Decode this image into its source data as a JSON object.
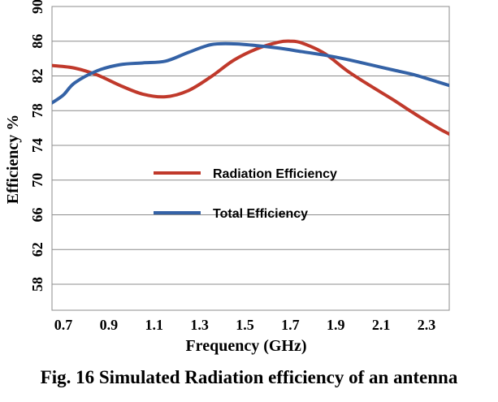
{
  "caption": "Fig. 16 Simulated Radiation efficiency of  an antenna",
  "chart_data": {
    "type": "line",
    "xlabel": "Frequency (GHz)",
    "ylabel": "Efficiency %",
    "xlim": [
      0.65,
      2.4
    ],
    "ylim": [
      55,
      90
    ],
    "x_ticks": [
      "0.7",
      "0.9",
      "1.1",
      "1.3",
      "1.5",
      "1.7",
      "1.9",
      "2.1",
      "2.3"
    ],
    "y_ticks": [
      "58",
      "62",
      "66",
      "70",
      "74",
      "78",
      "82",
      "86",
      "90"
    ],
    "grid": "horizontal",
    "legend_position": "center-left",
    "series": [
      {
        "name": "Radiation Efficiency",
        "color": "#c0392b",
        "x": [
          0.65,
          0.75,
          0.85,
          0.95,
          1.05,
          1.15,
          1.25,
          1.35,
          1.45,
          1.55,
          1.65,
          1.7,
          1.75,
          1.85,
          1.95,
          2.05,
          2.15,
          2.25,
          2.35,
          2.4
        ],
        "y": [
          83.2,
          82.9,
          82.1,
          80.9,
          79.9,
          79.6,
          80.3,
          81.9,
          83.8,
          85.1,
          85.9,
          86.0,
          85.8,
          84.6,
          82.6,
          80.9,
          79.3,
          77.6,
          76.0,
          75.3
        ]
      },
      {
        "name": "Total Efficiency",
        "color": "#3462a6",
        "x": [
          0.65,
          0.7,
          0.75,
          0.85,
          0.95,
          1.05,
          1.15,
          1.25,
          1.35,
          1.45,
          1.55,
          1.65,
          1.75,
          1.85,
          1.95,
          2.05,
          2.15,
          2.25,
          2.35,
          2.4
        ],
        "y": [
          78.9,
          79.8,
          81.2,
          82.6,
          83.3,
          83.5,
          83.7,
          84.7,
          85.6,
          85.7,
          85.5,
          85.2,
          84.8,
          84.4,
          83.9,
          83.3,
          82.7,
          82.1,
          81.3,
          80.9
        ]
      }
    ]
  }
}
